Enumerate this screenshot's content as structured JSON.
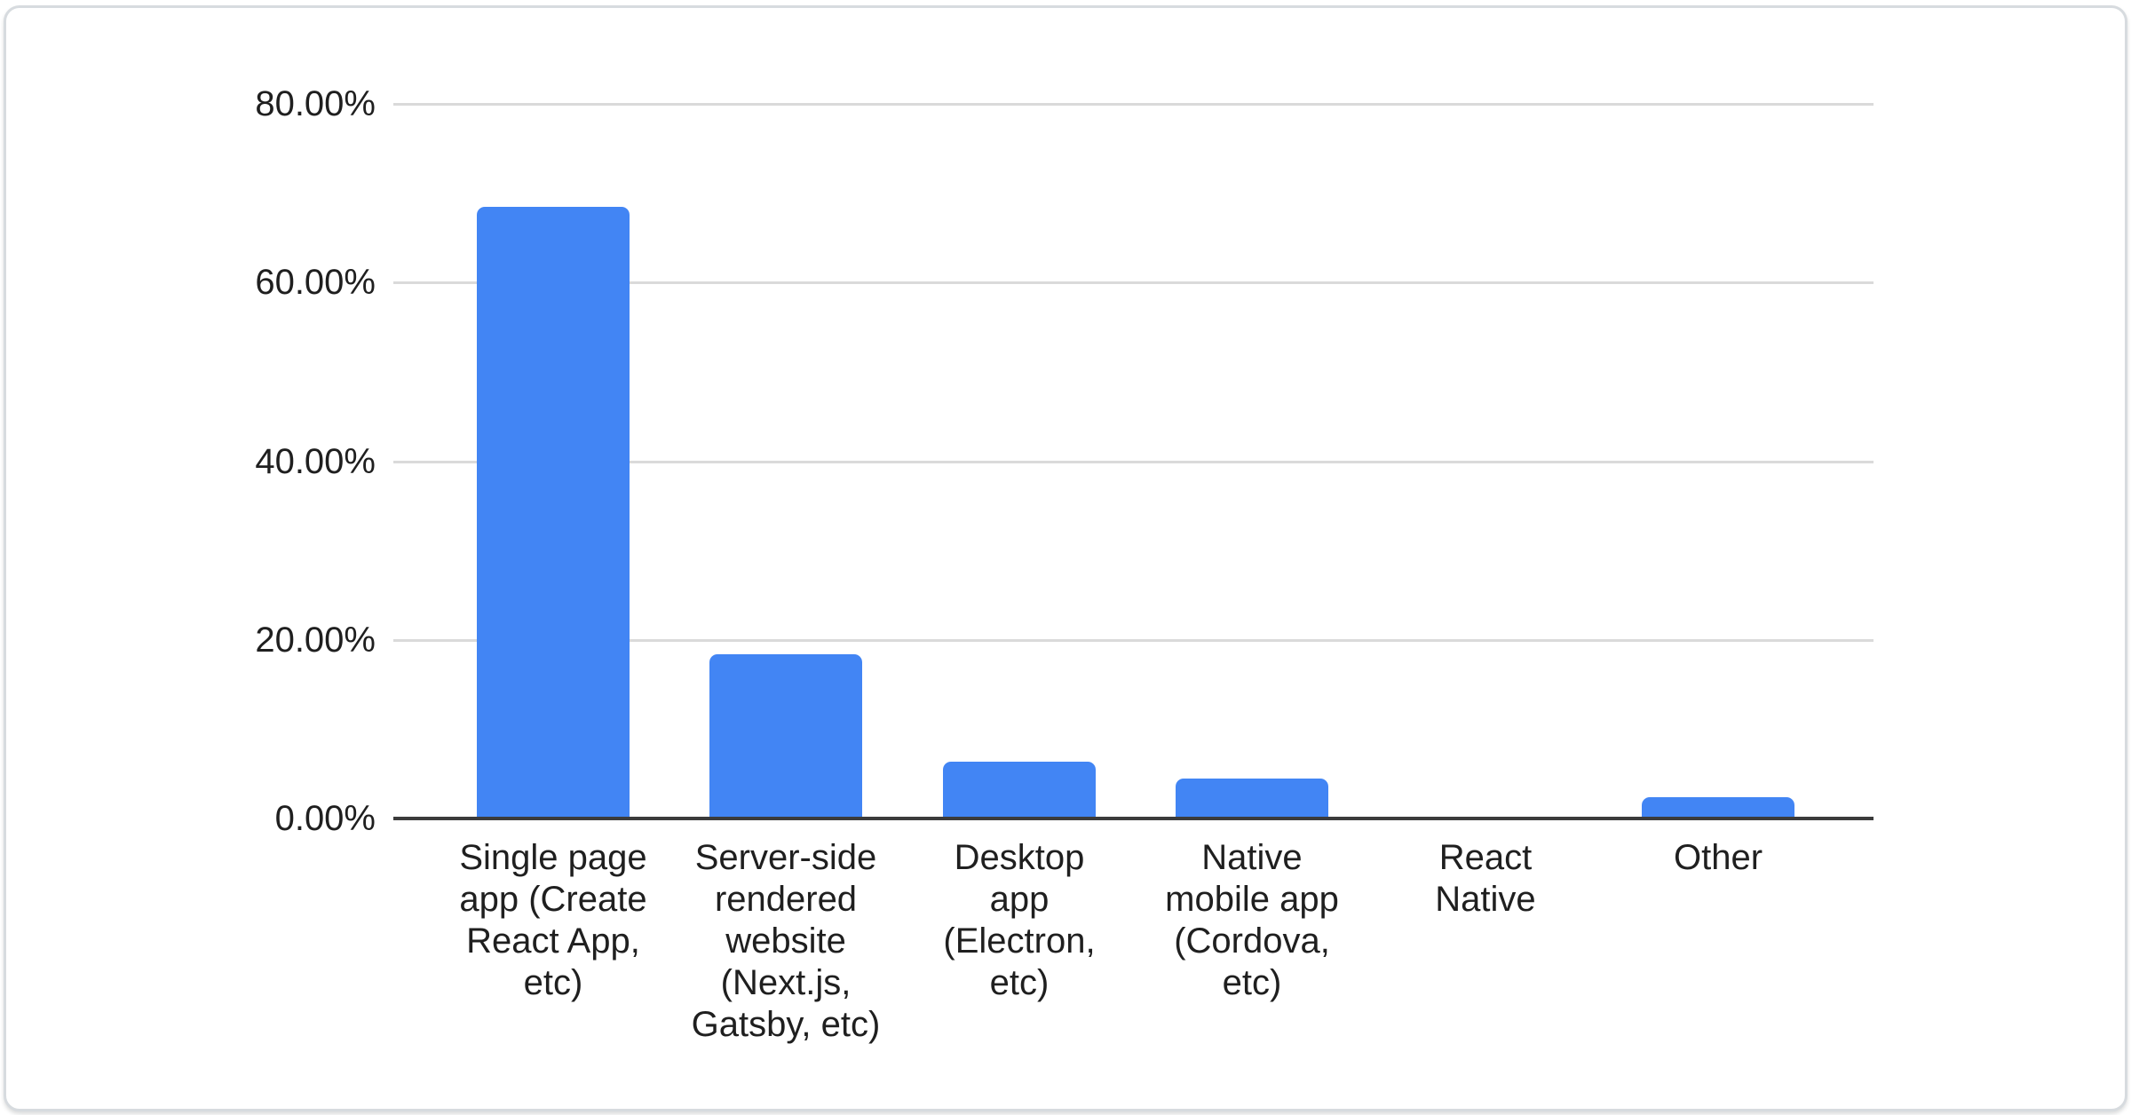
{
  "chart_data": {
    "type": "bar",
    "title": "",
    "xlabel": "",
    "ylabel": "",
    "categories": [
      "Single page app (Create React App, etc)",
      "Server-side rendered website (Next.js, Gatsby, etc)",
      "Desktop app (Electron, etc)",
      "Native mobile app (Cordova, etc)",
      "React Native",
      "Other"
    ],
    "values": [
      68.5,
      18.4,
      6.4,
      4.5,
      0,
      2.4
    ],
    "y_ticks": [
      {
        "value": 0,
        "label": "0.00%"
      },
      {
        "value": 20,
        "label": "20.00%"
      },
      {
        "value": 40,
        "label": "40.00%"
      },
      {
        "value": 60,
        "label": "60.00%"
      },
      {
        "value": 80,
        "label": "80.00%"
      }
    ],
    "ylim": [
      0,
      80
    ],
    "grid": true,
    "legend": "none",
    "colors": {
      "bar": "#4285f4",
      "gridline": "#dadada",
      "axis_line": "#3b3b3b",
      "label_text": "#1f1f1f"
    }
  }
}
